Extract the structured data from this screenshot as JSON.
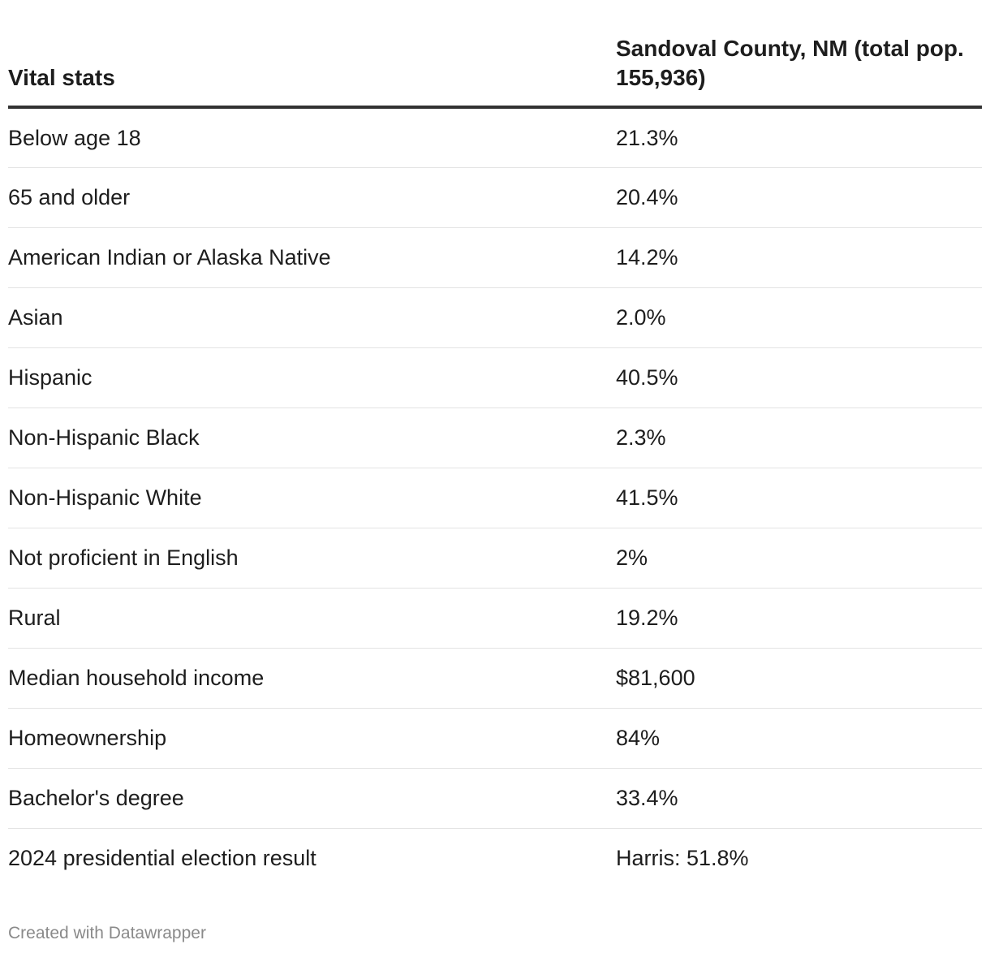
{
  "chart_data": {
    "type": "table",
    "columns": [
      "Vital stats",
      "Sandoval County, NM (total pop. 155,936)"
    ],
    "rows": [
      {
        "label": "Below age 18",
        "value": "21.3%"
      },
      {
        "label": "65 and older",
        "value": "20.4%"
      },
      {
        "label": "American Indian or Alaska Native",
        "value": "14.2%"
      },
      {
        "label": "Asian",
        "value": "2.0%"
      },
      {
        "label": "Hispanic",
        "value": "40.5%"
      },
      {
        "label": "Non-Hispanic Black",
        "value": "2.3%"
      },
      {
        "label": "Non-Hispanic White",
        "value": "41.5%"
      },
      {
        "label": "Not proficient in English",
        "value": "2%"
      },
      {
        "label": "Rural",
        "value": "19.2%"
      },
      {
        "label": "Median household income",
        "value": "$81,600"
      },
      {
        "label": "Homeownership",
        "value": "84%"
      },
      {
        "label": "Bachelor's degree",
        "value": "33.4%"
      },
      {
        "label": "2024 presidential election result",
        "value": "Harris: 51.8%"
      }
    ]
  },
  "footer": {
    "credit": "Created with Datawrapper"
  },
  "colors": {
    "text": "#1d1d1d",
    "header_rule": "#333333",
    "row_rule": "#e3e3e3",
    "footer_text": "#8a8a8a"
  }
}
